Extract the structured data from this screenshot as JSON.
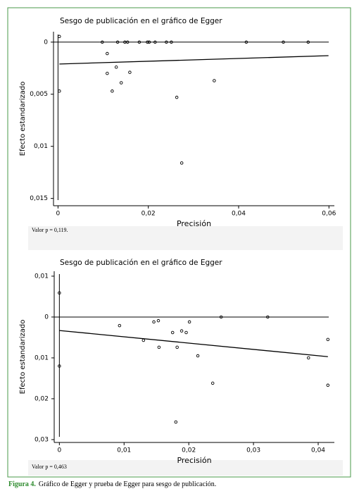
{
  "chart_data": [
    {
      "type": "scatter",
      "title": "Sesgo de publicación en el gráfico de Egger",
      "x_label": "Precisión",
      "y_label": "Efecto estandarizado",
      "annotation": "Valor p = 0,119.",
      "xlim": [
        -0.001,
        0.0612
      ],
      "ylim": [
        -0.001,
        0.0157
      ],
      "y_inverted": true,
      "xticks": [
        0,
        {
          "value": 0.02,
          "label": "0,02"
        },
        {
          "value": 0.04,
          "label": "0,04"
        },
        {
          "value": 0.06,
          "label": "0,06"
        }
      ],
      "yticks": [
        0,
        {
          "value": 0.005,
          "label": "0,005"
        },
        {
          "value": 0.01,
          "label": "0,01"
        },
        {
          "value": 0.015,
          "label": "0,015"
        }
      ],
      "color": "#000000",
      "x": [
        0.0003,
        0.0003,
        0.0098,
        0.0109,
        0.0109,
        0.0129,
        0.012,
        0.014,
        0.0159,
        0.0263,
        0.0274,
        0.0346,
        0.0132,
        0.0148,
        0.0154,
        0.018,
        0.0198,
        0.0202,
        0.0215,
        0.024,
        0.0251,
        0.0417,
        0.0499,
        0.0554
      ],
      "values": [
        -0.00054,
        0.0047,
        0,
        0.0011,
        0.003,
        0.0024,
        0.0047,
        0.0039,
        0.0029,
        0.0053,
        0.0116,
        0.0037,
        0,
        0,
        0,
        0,
        0,
        0,
        0,
        0,
        0,
        0,
        0,
        0
      ],
      "fit_line": {
        "x": [
          0.0003,
          0.0599
        ],
        "values": [
          0.0021,
          0.0013
        ]
      },
      "hline": 0,
      "vline": 0
    },
    {
      "type": "scatter",
      "title": "Sesgo de publicación en el gráfico de Egger",
      "x_label": "Precisión",
      "y_label": "Efecto estandarizado",
      "annotation": "Valor p = 0,463",
      "xlim": [
        -0.0008,
        0.0425
      ],
      "ylim": [
        -0.0112,
        0.0307
      ],
      "y_inverted": true,
      "xticks": [
        0,
        {
          "value": 0.01,
          "label": "0,01"
        },
        {
          "value": 0.02,
          "label": "0,02"
        },
        {
          "value": 0.03,
          "label": "0,03"
        },
        {
          "value": 0.04,
          "label": "0,04"
        }
      ],
      "yticks": [
        {
          "value": -0.01,
          "label": "0,01"
        },
        0,
        {
          "value": 0.01,
          "label": "0,01"
        },
        {
          "value": 0.02,
          "label": "0,02"
        },
        {
          "value": 0.03,
          "label": "0,03"
        }
      ],
      "color": "#000000",
      "x": [
        0,
        0,
        0.0093,
        0.013,
        0.0146,
        0.0153,
        0.0154,
        0.0175,
        0.0182,
        0.0189,
        0.0196,
        0.0201,
        0.0214,
        0.0237,
        0.018,
        0.025,
        0.0322,
        0.0385,
        0.0415,
        0.0415
      ],
      "values": [
        -0.0059,
        0.012,
        0.0021,
        0.0057,
        0.0012,
        0.0009,
        0.0074,
        0.0038,
        0.0074,
        0.0034,
        0.0038,
        0.0012,
        0.0095,
        0.0162,
        0.0257,
        0,
        0,
        0.01,
        0.0055,
        0.0167
      ],
      "fit_line": {
        "x": [
          0,
          0.0415
        ],
        "values": [
          0.0033,
          0.0097
        ]
      },
      "hline": 0,
      "vline": 0
    }
  ],
  "caption": {
    "label": "Figura 4.",
    "text": "Gráfico de  Egger y prueba de Egger para sesgo de publicación."
  }
}
